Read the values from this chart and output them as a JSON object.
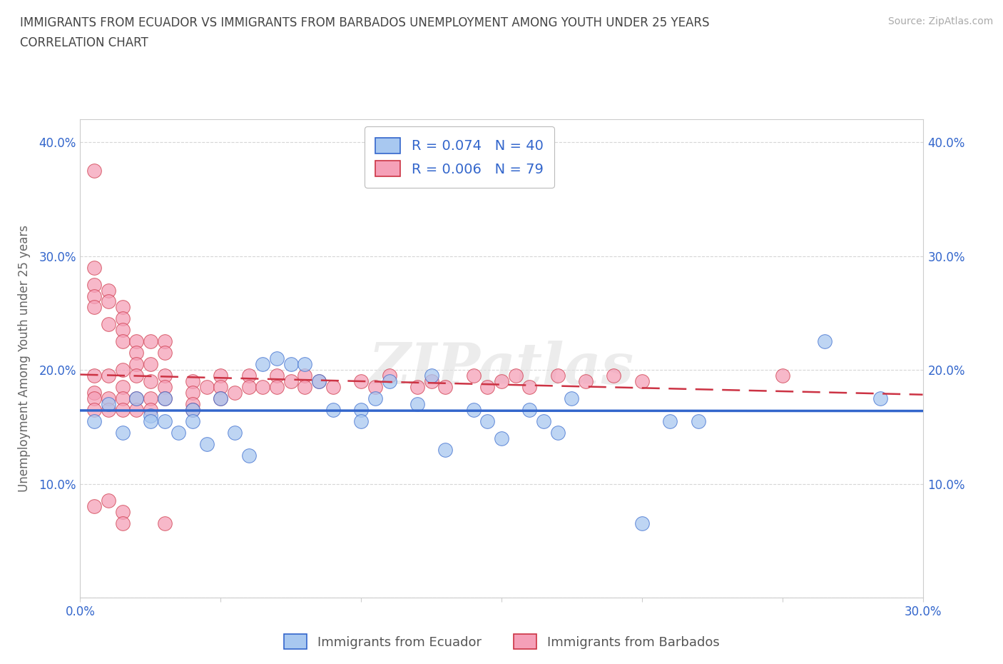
{
  "title_line1": "IMMIGRANTS FROM ECUADOR VS IMMIGRANTS FROM BARBADOS UNEMPLOYMENT AMONG YOUTH UNDER 25 YEARS",
  "title_line2": "CORRELATION CHART",
  "source": "Source: ZipAtlas.com",
  "ylabel": "Unemployment Among Youth under 25 years",
  "xlim": [
    0,
    0.3
  ],
  "ylim": [
    0.0,
    0.42
  ],
  "ecuador_color": "#a8c8f0",
  "barbados_color": "#f5a0b8",
  "ecuador_line_color": "#3366cc",
  "barbados_line_color": "#cc3344",
  "ecuador_x": [
    0.005,
    0.01,
    0.015,
    0.02,
    0.025,
    0.025,
    0.03,
    0.03,
    0.035,
    0.04,
    0.04,
    0.045,
    0.05,
    0.055,
    0.06,
    0.065,
    0.07,
    0.075,
    0.08,
    0.085,
    0.09,
    0.1,
    0.1,
    0.105,
    0.11,
    0.12,
    0.125,
    0.13,
    0.14,
    0.145,
    0.15,
    0.16,
    0.165,
    0.17,
    0.175,
    0.2,
    0.21,
    0.22,
    0.265,
    0.285
  ],
  "ecuador_y": [
    0.155,
    0.17,
    0.145,
    0.175,
    0.16,
    0.155,
    0.175,
    0.155,
    0.145,
    0.165,
    0.155,
    0.135,
    0.175,
    0.145,
    0.125,
    0.205,
    0.21,
    0.205,
    0.205,
    0.19,
    0.165,
    0.165,
    0.155,
    0.175,
    0.19,
    0.17,
    0.195,
    0.13,
    0.165,
    0.155,
    0.14,
    0.165,
    0.155,
    0.145,
    0.175,
    0.065,
    0.155,
    0.155,
    0.225,
    0.175
  ],
  "barbados_x": [
    0.005,
    0.005,
    0.005,
    0.005,
    0.005,
    0.005,
    0.005,
    0.005,
    0.005,
    0.005,
    0.01,
    0.01,
    0.01,
    0.01,
    0.01,
    0.01,
    0.01,
    0.015,
    0.015,
    0.015,
    0.015,
    0.015,
    0.015,
    0.015,
    0.015,
    0.015,
    0.015,
    0.02,
    0.02,
    0.02,
    0.02,
    0.02,
    0.02,
    0.025,
    0.025,
    0.025,
    0.025,
    0.025,
    0.03,
    0.03,
    0.03,
    0.03,
    0.03,
    0.03,
    0.04,
    0.04,
    0.04,
    0.04,
    0.045,
    0.05,
    0.05,
    0.05,
    0.055,
    0.06,
    0.06,
    0.065,
    0.07,
    0.07,
    0.075,
    0.08,
    0.08,
    0.085,
    0.09,
    0.1,
    0.105,
    0.11,
    0.12,
    0.125,
    0.13,
    0.14,
    0.145,
    0.15,
    0.155,
    0.16,
    0.17,
    0.18,
    0.19,
    0.2,
    0.25
  ],
  "barbados_y": [
    0.375,
    0.29,
    0.275,
    0.265,
    0.255,
    0.195,
    0.18,
    0.175,
    0.165,
    0.08,
    0.27,
    0.26,
    0.24,
    0.195,
    0.175,
    0.165,
    0.085,
    0.255,
    0.245,
    0.235,
    0.225,
    0.2,
    0.185,
    0.175,
    0.165,
    0.075,
    0.065,
    0.225,
    0.215,
    0.205,
    0.195,
    0.175,
    0.165,
    0.225,
    0.205,
    0.19,
    0.175,
    0.165,
    0.225,
    0.215,
    0.195,
    0.185,
    0.175,
    0.065,
    0.19,
    0.18,
    0.17,
    0.165,
    0.185,
    0.195,
    0.185,
    0.175,
    0.18,
    0.195,
    0.185,
    0.185,
    0.195,
    0.185,
    0.19,
    0.195,
    0.185,
    0.19,
    0.185,
    0.19,
    0.185,
    0.195,
    0.185,
    0.19,
    0.185,
    0.195,
    0.185,
    0.19,
    0.195,
    0.185,
    0.195,
    0.19,
    0.195,
    0.19,
    0.195
  ],
  "watermark_text": "ZIPatlas",
  "background_color": "#ffffff",
  "grid_color": "#cccccc"
}
